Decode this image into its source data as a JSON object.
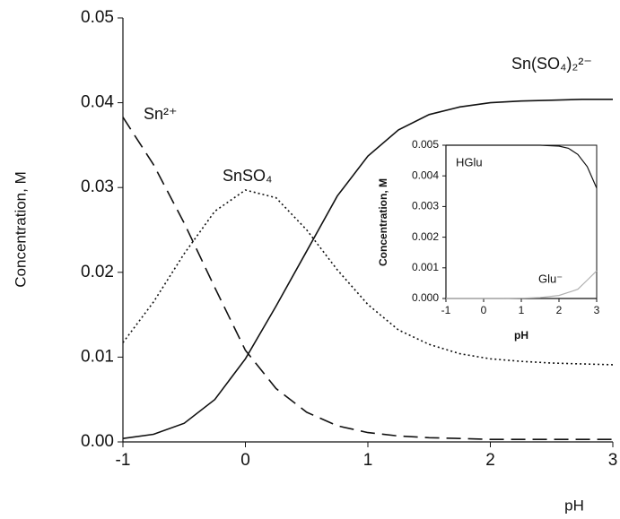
{
  "chart_data": [
    {
      "type": "line",
      "x_label": "pH",
      "y_label": "Concentration, M",
      "x": [
        -1,
        -0.75,
        -0.5,
        -0.25,
        0,
        0.25,
        0.5,
        0.75,
        1,
        1.25,
        1.5,
        1.75,
        2,
        2.25,
        2.5,
        2.75,
        3
      ],
      "series": [
        {
          "name": "Sn²⁺",
          "color": "#111111",
          "dash": "dashed",
          "values": [
            0.0383,
            0.0327,
            0.0258,
            0.0182,
            0.0108,
            0.0063,
            0.0035,
            0.0019,
            0.0011,
            0.0007,
            0.0005,
            0.0004,
            0.0003,
            0.0003,
            0.0003,
            0.0003,
            0.0003
          ]
        },
        {
          "name": "SnSO₄",
          "color": "#111111",
          "dash": "dotted",
          "values": [
            0.0117,
            0.0165,
            0.0222,
            0.0272,
            0.0297,
            0.0288,
            0.025,
            0.0203,
            0.0162,
            0.0132,
            0.0115,
            0.0104,
            0.0098,
            0.0095,
            0.0093,
            0.0092,
            0.0091
          ]
        },
        {
          "name": "Sn(SO₄)₂²⁻",
          "color": "#111111",
          "dash": "solid",
          "values": [
            0.0004,
            0.0009,
            0.0022,
            0.005,
            0.0098,
            0.016,
            0.0225,
            0.029,
            0.0337,
            0.0368,
            0.0386,
            0.0395,
            0.04,
            0.0402,
            0.0403,
            0.0404,
            0.0404
          ]
        }
      ],
      "xlim": [
        -1,
        3
      ],
      "xticks": [
        -1,
        0,
        1,
        2,
        3
      ],
      "ylim": [
        0,
        0.05
      ],
      "yticks": [
        {
          "value": 0,
          "label": "0.00"
        },
        {
          "value": 0.01,
          "label": "0.01"
        },
        {
          "value": 0.02,
          "label": "0.02"
        },
        {
          "value": 0.03,
          "label": "0.03"
        },
        {
          "value": 0.04,
          "label": "0.04"
        },
        {
          "value": 0.05,
          "label": "0.05"
        }
      ],
      "grid": false
    },
    {
      "type": "line",
      "x_label": "pH",
      "y_label": "Concentration, M",
      "x": [
        -1,
        -0.5,
        0,
        0.5,
        1,
        1.5,
        2,
        2.25,
        2.5,
        2.75,
        3
      ],
      "series": [
        {
          "name": "HGlu",
          "color": "#111111",
          "dash": "solid",
          "values": [
            0.005,
            0.005,
            0.005,
            0.005,
            0.005,
            0.005,
            0.00497,
            0.0049,
            0.0047,
            0.0043,
            0.0036
          ]
        },
        {
          "name": "Glu⁻",
          "color": "#b0b0b0",
          "dash": "solid",
          "values": [
            0,
            0,
            0,
            0,
            1e-05,
            3e-05,
            0.0001,
            0.0002,
            0.0003,
            0.0006,
            0.0009
          ]
        }
      ],
      "xlim": [
        -1,
        3
      ],
      "xticks": [
        -1,
        0,
        1,
        2,
        3
      ],
      "ylim": [
        0,
        0.005
      ],
      "yticks": [
        {
          "value": 0,
          "label": "0.000"
        },
        {
          "value": 0.001,
          "label": "0.001"
        },
        {
          "value": 0.002,
          "label": "0.002"
        },
        {
          "value": 0.003,
          "label": "0.003"
        },
        {
          "value": 0.004,
          "label": "0.004"
        },
        {
          "value": 0.005,
          "label": "0.005"
        }
      ],
      "grid": false
    }
  ]
}
